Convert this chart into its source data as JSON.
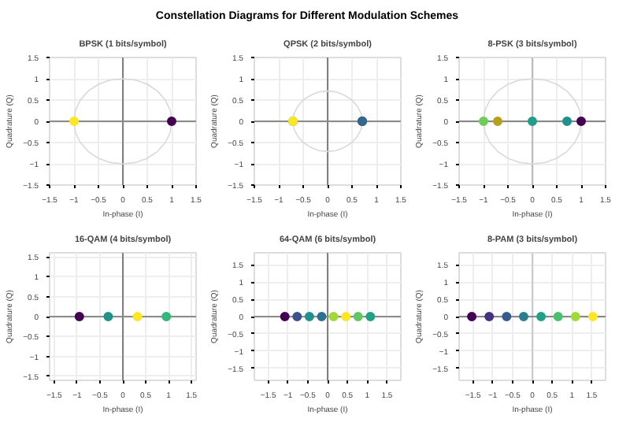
{
  "chart_data": [
    {
      "type": "other",
      "title": "Constellation Diagrams for Different Modulation Schemes"
    },
    {
      "type": "scatter",
      "title": "BPSK (1 bits/symbol)",
      "xlabel": "In-phase (I)",
      "ylabel": "Quadrature (Q)",
      "xlim": [
        -1.5,
        1.5
      ],
      "ylim": [
        -1.5,
        1.5
      ],
      "xticks": [
        -1.5,
        -1.0,
        -0.5,
        0.0,
        0.5,
        1.0,
        1.5
      ],
      "yticks": [
        -1.5,
        -1.0,
        -0.5,
        0.0,
        0.5,
        1.0,
        1.5
      ],
      "grid": true,
      "ref_lines": [
        {
          "axis": "x",
          "value": 0,
          "color": "#808080"
        },
        {
          "axis": "y",
          "value": 0,
          "color": "#8c8c8c"
        }
      ],
      "series": [
        {
          "type": "line",
          "color": "#d9d9d9",
          "x": [
            -1,
            -0.97,
            -0.87,
            -0.71,
            -0.5,
            -0.26,
            0,
            0.26,
            0.5,
            0.71,
            0.87,
            0.97,
            1
          ],
          "values": [
            0,
            0.26,
            0.5,
            0.71,
            0.87,
            0.97,
            1,
            0.97,
            0.87,
            0.71,
            0.5,
            0.26,
            0
          ]
        },
        {
          "type": "line",
          "color": "#dadada",
          "x": [
            -1,
            -0.97,
            -0.87,
            -0.71,
            -0.5,
            -0.26,
            0,
            0.26,
            0.5,
            0.71,
            0.87,
            0.97,
            1
          ],
          "values": [
            0,
            -0.26,
            -0.5,
            -0.71,
            -0.87,
            -0.97,
            -1,
            -0.97,
            -0.87,
            -0.71,
            -0.5,
            -0.26,
            0
          ]
        },
        {
          "type": "scatter",
          "marker": "circle",
          "x": [
            1.0,
            -1.0
          ],
          "values": [
            0,
            0
          ],
          "colors": [
            "#440154",
            "#fde725"
          ]
        }
      ]
    },
    {
      "type": "scatter",
      "title": "QPSK (2 bits/symbol)",
      "xlabel": "In-phase (I)",
      "ylabel": "Quadrature (Q)",
      "xlim": [
        -1.5,
        1.5
      ],
      "ylim": [
        -1.5,
        1.5
      ],
      "xticks": [
        -1.5,
        -1.0,
        -0.5,
        0.0,
        0.5,
        1.0,
        1.5
      ],
      "yticks": [
        -1.5,
        -1.0,
        -0.5,
        0.0,
        0.5,
        1.0,
        1.5
      ],
      "grid": true,
      "ref_lines": [
        {
          "axis": "x",
          "value": 0,
          "color": "#808080"
        },
        {
          "axis": "y",
          "value": 0,
          "color": "#8c8c8c"
        }
      ],
      "series": [
        {
          "type": "line",
          "color": "#d9d9d9",
          "x": [
            -0.71,
            -0.69,
            -0.61,
            -0.5,
            -0.35,
            -0.18,
            0,
            0.18,
            0.35,
            0.5,
            0.61,
            0.69,
            0.71
          ],
          "values": [
            0,
            0.18,
            0.35,
            0.5,
            0.61,
            0.69,
            0.71,
            0.69,
            0.61,
            0.5,
            0.35,
            0.18,
            0
          ]
        },
        {
          "type": "line",
          "color": "#dadada",
          "x": [
            -0.71,
            -0.69,
            -0.61,
            -0.5,
            -0.35,
            -0.18,
            0,
            0.18,
            0.35,
            0.5,
            0.61,
            0.69,
            0.71
          ],
          "values": [
            0,
            -0.18,
            -0.35,
            -0.5,
            -0.61,
            -0.69,
            -0.71,
            -0.69,
            -0.61,
            -0.5,
            -0.35,
            -0.18,
            0
          ]
        },
        {
          "type": "scatter",
          "marker": "circle",
          "x": [
            0.71,
            0.71,
            -0.71,
            -0.71
          ],
          "values": [
            0,
            0,
            0,
            0
          ],
          "colors": [
            "#440154",
            "#31688e",
            "#35b779",
            "#fde725"
          ]
        }
      ]
    },
    {
      "type": "scatter",
      "title": "8-PSK (3 bits/symbol)",
      "xlabel": "In-phase (I)",
      "ylabel": "Quadrature (Q)",
      "xlim": [
        -1.5,
        1.5
      ],
      "ylim": [
        -1.5,
        1.5
      ],
      "xticks": [
        -1.5,
        -1.0,
        -0.5,
        0.0,
        0.5,
        1.0,
        1.5
      ],
      "yticks": [
        -1.5,
        -1.0,
        -0.5,
        0.0,
        0.5,
        1.0,
        1.5
      ],
      "grid": true,
      "ref_lines": [
        {
          "axis": "x",
          "value": 0,
          "color": "#bbbbbb"
        },
        {
          "axis": "y",
          "value": 0,
          "color": "#888888"
        }
      ],
      "series": [
        {
          "type": "line",
          "color": "#d9d9d9",
          "x": [
            -1,
            -0.97,
            -0.87,
            -0.71,
            -0.5,
            -0.26,
            0,
            0.26,
            0.5,
            0.71,
            0.87,
            0.97,
            1
          ],
          "values": [
            0,
            0.26,
            0.5,
            0.71,
            0.87,
            0.97,
            1,
            0.97,
            0.87,
            0.71,
            0.5,
            0.26,
            0
          ]
        },
        {
          "type": "line",
          "color": "#dadada",
          "x": [
            -1,
            -0.97,
            -0.87,
            -0.71,
            -0.5,
            -0.26,
            0,
            0.26,
            0.5,
            0.71,
            0.87,
            0.97,
            1
          ],
          "values": [
            0,
            -0.26,
            -0.5,
            -0.71,
            -0.87,
            -0.97,
            -1,
            -0.97,
            -0.87,
            -0.71,
            -0.5,
            -0.26,
            0
          ]
        },
        {
          "type": "scatter",
          "marker": "circle",
          "x": [
            1.0,
            0.71,
            0.0,
            -0.71,
            -1.0
          ],
          "values": [
            0,
            0,
            0,
            0,
            0
          ],
          "colors": [
            "#440154",
            "#21918c",
            "#1f9e89",
            "#b5a01f",
            "#6ece58"
          ]
        }
      ]
    },
    {
      "type": "scatter",
      "title": "16-QAM (4 bits/symbol)",
      "xlabel": "In-phase (I)",
      "ylabel": "Quadrature (Q)",
      "xlim": [
        -1.6,
        1.6
      ],
      "ylim": [
        -1.6,
        1.6
      ],
      "xticks": [
        -1.5,
        -1.0,
        -0.5,
        0.0,
        0.5,
        1.0,
        1.5
      ],
      "yticks": [
        -1.5,
        -1.0,
        -0.5,
        0.0,
        0.5,
        1.0,
        1.5
      ],
      "grid": true,
      "ref_lines": [
        {
          "axis": "x",
          "value": 0,
          "color": "#808080"
        },
        {
          "axis": "y",
          "value": 0,
          "color": "#8c8c8c"
        }
      ],
      "series": [
        {
          "type": "scatter",
          "marker": "circle",
          "x": [
            -0.95,
            -0.32,
            0.32,
            0.95
          ],
          "values": [
            0,
            0,
            0,
            0
          ],
          "colors": [
            "#440154",
            "#21918c",
            "#fde725",
            "#35b779"
          ]
        }
      ]
    },
    {
      "type": "scatter",
      "title": "64-QAM (6 bits/symbol)",
      "xlabel": "In-phase (I)",
      "ylabel": "Quadrature (Q)",
      "xlim": [
        -1.85,
        1.85
      ],
      "ylim": [
        -1.85,
        1.85
      ],
      "xticks": [
        -1.5,
        -1.0,
        -0.5,
        0.0,
        0.5,
        1.0,
        1.5
      ],
      "yticks": [
        -1.5,
        -1.0,
        -0.5,
        0.0,
        0.5,
        1.0,
        1.5
      ],
      "grid": true,
      "ref_lines": [
        {
          "axis": "x",
          "value": 0,
          "color": "#808080"
        },
        {
          "axis": "y",
          "value": 0,
          "color": "#8c8c8c"
        }
      ],
      "series": [
        {
          "type": "scatter",
          "marker": "circle",
          "x": [
            -1.08,
            -0.77,
            -0.46,
            -0.15,
            0.15,
            0.46,
            0.77,
            1.08
          ],
          "values": [
            0,
            0,
            0,
            0,
            0,
            0,
            0,
            0
          ],
          "colors": [
            "#440154",
            "#3b528b",
            "#21918c",
            "#2c728e",
            "#a0da39",
            "#fde725",
            "#5ec962",
            "#1fa187"
          ]
        }
      ]
    },
    {
      "type": "scatter",
      "title": "8-PAM (3 bits/symbol)",
      "xlabel": "In-phase (I)",
      "ylabel": "Quadrature (Q)",
      "xlim": [
        -1.85,
        1.85
      ],
      "ylim": [
        -1.85,
        1.85
      ],
      "xticks": [
        -1.5,
        -1.0,
        -0.5,
        0.0,
        0.5,
        1.0,
        1.5
      ],
      "yticks": [
        -1.5,
        -1.0,
        -0.5,
        0.0,
        0.5,
        1.0,
        1.5
      ],
      "grid": true,
      "ref_lines": [
        {
          "axis": "x",
          "value": 0,
          "color": "#cccccc"
        },
        {
          "axis": "y",
          "value": 0,
          "color": "#888888"
        }
      ],
      "series": [
        {
          "type": "scatter",
          "marker": "circle",
          "x": [
            -1.53,
            -1.09,
            -0.65,
            -0.22,
            0.22,
            0.65,
            1.09,
            1.53
          ],
          "values": [
            0,
            0,
            0,
            0,
            0,
            0,
            0,
            0
          ],
          "colors": [
            "#440154",
            "#46327e",
            "#365c8d",
            "#277f8e",
            "#1fa187",
            "#4ac16d",
            "#a0da39",
            "#fde725"
          ]
        }
      ]
    }
  ]
}
